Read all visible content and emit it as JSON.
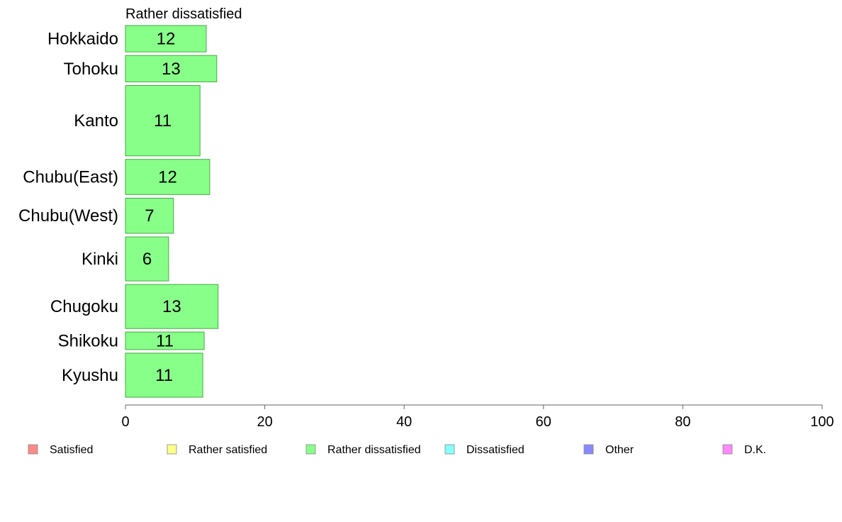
{
  "chart_data": {
    "type": "bar",
    "orientation": "horizontal",
    "panel_title": "Rather dissatisfied",
    "categories": [
      "Hokkaido",
      "Tohoku",
      "Kanto",
      "Chubu(East)",
      "Chubu(West)",
      "Kinki",
      "Chugoku",
      "Shikoku",
      "Kyushu"
    ],
    "values": [
      11.6,
      13.1,
      10.7,
      12.1,
      6.9,
      6.2,
      13.3,
      11.3,
      11.1
    ],
    "value_labels": [
      "12",
      "13",
      "11",
      "12",
      "7",
      "6",
      "13",
      "11",
      "11"
    ],
    "relative_widths": [
      3,
      3,
      8,
      4,
      4,
      5,
      5,
      2,
      5
    ],
    "xlim": [
      0,
      100
    ],
    "xticks": [
      "0",
      "20",
      "40",
      "60",
      "80",
      "100"
    ],
    "bar_color": "#88ff88",
    "bar_edge_color": "#44aa44",
    "grid": false,
    "legend_position": "bottom",
    "legend": [
      {
        "label": "Satisfied",
        "color": "#ff8888"
      },
      {
        "label": "Rather satisfied",
        "color": "#ffff88"
      },
      {
        "label": "Rather dissatisfied",
        "color": "#88ff88"
      },
      {
        "label": "Dissatisfied",
        "color": "#88ffff"
      },
      {
        "label": "Other",
        "color": "#8888ff"
      },
      {
        "label": "D.K.",
        "color": "#ff88ff"
      }
    ]
  }
}
